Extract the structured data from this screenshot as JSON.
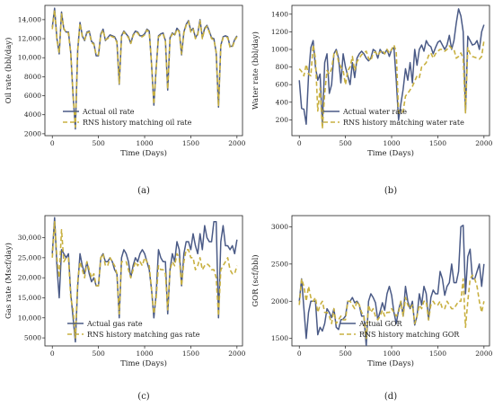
{
  "colors": {
    "actual": "#4a5a86",
    "rns": "#c8b040",
    "axis": "#222222"
  },
  "chart_data": [
    {
      "type": "line",
      "caption": "(a)",
      "xlabel": "Time (Days)",
      "ylabel": "Oil rate (bbl/day)",
      "xlim": [
        -80,
        2060
      ],
      "ylim": [
        1800,
        15500
      ],
      "xticks": [
        0,
        500,
        1000,
        1500,
        2000
      ],
      "yticks": [
        2000,
        4000,
        6000,
        8000,
        10000,
        12000,
        14000
      ],
      "ytick_labels": [
        "2000",
        "4000",
        "6000",
        "8000",
        "10,000",
        "12,000",
        "14,000"
      ],
      "legend_position": "lower-center",
      "x": [
        0,
        25,
        50,
        75,
        100,
        125,
        150,
        175,
        200,
        225,
        250,
        275,
        300,
        325,
        350,
        375,
        400,
        425,
        450,
        475,
        500,
        525,
        550,
        575,
        600,
        625,
        650,
        675,
        700,
        725,
        750,
        775,
        800,
        825,
        850,
        875,
        900,
        925,
        950,
        975,
        1000,
        1025,
        1050,
        1075,
        1100,
        1125,
        1150,
        1175,
        1200,
        1225,
        1250,
        1275,
        1300,
        1325,
        1350,
        1375,
        1400,
        1425,
        1450,
        1475,
        1500,
        1525,
        1550,
        1575,
        1600,
        1625,
        1650,
        1675,
        1700,
        1725,
        1750,
        1775,
        1800,
        1825,
        1850,
        1875,
        1900,
        1925,
        1950,
        1975,
        2000
      ],
      "series": [
        {
          "name": "Actual oil rate",
          "style": "solid",
          "values": [
            13200,
            15200,
            12000,
            10400,
            14800,
            13000,
            12700,
            12700,
            10500,
            6000,
            2500,
            10800,
            13700,
            12300,
            11800,
            12700,
            12800,
            11700,
            11500,
            10200,
            10200,
            12500,
            13000,
            11800,
            12100,
            12400,
            12300,
            12200,
            11700,
            7200,
            12300,
            12800,
            12500,
            12200,
            11500,
            12400,
            12800,
            12700,
            12300,
            12300,
            12500,
            13000,
            12800,
            9300,
            5000,
            8900,
            12300,
            12500,
            12600,
            11800,
            6600,
            12100,
            12600,
            12400,
            13100,
            12800,
            10300,
            12700,
            13500,
            13900,
            12800,
            13100,
            12100,
            12500,
            14000,
            12100,
            13100,
            13400,
            12800,
            12100,
            12000,
            10500,
            4800,
            11300,
            12200,
            12300,
            12200,
            11200,
            11200,
            11900,
            12300
          ]
        },
        {
          "name": "RNS history matching oil rate",
          "style": "dashed",
          "values": [
            13000,
            15000,
            11900,
            10500,
            14600,
            13100,
            12600,
            12600,
            10400,
            6100,
            2700,
            10700,
            13600,
            12200,
            11900,
            12600,
            12700,
            11600,
            11400,
            10300,
            10300,
            12400,
            12900,
            11900,
            12000,
            12300,
            12200,
            12100,
            11600,
            7300,
            12200,
            12700,
            12400,
            12100,
            11500,
            12300,
            12700,
            12600,
            12200,
            12200,
            12400,
            12900,
            12700,
            9400,
            5100,
            8800,
            12200,
            12400,
            12500,
            11700,
            6700,
            12000,
            12500,
            12300,
            13000,
            12700,
            10400,
            12600,
            13400,
            13800,
            12700,
            13000,
            12000,
            12400,
            13900,
            12000,
            13000,
            13300,
            12700,
            12000,
            11900,
            10600,
            4900,
            11200,
            12100,
            12200,
            12100,
            11100,
            11100,
            11800,
            12200
          ]
        }
      ]
    },
    {
      "type": "line",
      "caption": "(b)",
      "xlabel": "Time (Days)",
      "ylabel": "Water rate (bbl/day)",
      "xlim": [
        -80,
        2060
      ],
      "ylim": [
        20,
        1500
      ],
      "xticks": [
        0,
        500,
        1000,
        1500,
        2000
      ],
      "yticks": [
        200,
        400,
        600,
        800,
        1000,
        1200,
        1400
      ],
      "ytick_labels": [
        "200",
        "400",
        "600",
        "800",
        "1000",
        "1200",
        "1400"
      ],
      "legend_position": "lower-right",
      "x": [
        0,
        25,
        50,
        75,
        100,
        125,
        150,
        175,
        200,
        225,
        250,
        275,
        300,
        325,
        350,
        375,
        400,
        425,
        450,
        475,
        500,
        525,
        550,
        575,
        600,
        625,
        650,
        675,
        700,
        725,
        750,
        775,
        800,
        825,
        850,
        875,
        900,
        925,
        950,
        975,
        1000,
        1025,
        1050,
        1075,
        1100,
        1125,
        1150,
        1175,
        1200,
        1225,
        1250,
        1275,
        1300,
        1325,
        1350,
        1375,
        1400,
        1425,
        1450,
        1475,
        1500,
        1525,
        1550,
        1575,
        1600,
        1625,
        1650,
        1675,
        1700,
        1725,
        1750,
        1775,
        1800,
        1825,
        1850,
        1875,
        1900,
        1925,
        1950,
        1975,
        2000
      ],
      "series": [
        {
          "name": "Actual water rate",
          "style": "solid",
          "values": [
            650,
            330,
            320,
            150,
            700,
            1020,
            1100,
            800,
            650,
            720,
            150,
            850,
            950,
            500,
            600,
            950,
            1000,
            900,
            620,
            950,
            800,
            700,
            600,
            850,
            680,
            900,
            950,
            980,
            950,
            900,
            870,
            900,
            1000,
            980,
            900,
            1000,
            960,
            950,
            1000,
            920,
            1000,
            1020,
            650,
            200,
            380,
            550,
            780,
            650,
            850,
            620,
            1000,
            820,
            1000,
            1050,
            980,
            1100,
            1050,
            1030,
            950,
            1020,
            1080,
            1100,
            1050,
            1000,
            1050,
            1160,
            1000,
            1100,
            1300,
            1460,
            1380,
            1200,
            280,
            1150,
            1100,
            1050,
            1060,
            1100,
            1000,
            1200,
            1280
          ]
        },
        {
          "name": "RNS history matching water rate",
          "style": "dashed",
          "values": [
            780,
            750,
            700,
            830,
            720,
            700,
            1050,
            900,
            300,
            560,
            100,
            500,
            760,
            720,
            780,
            950,
            980,
            860,
            800,
            760,
            600,
            760,
            800,
            920,
            760,
            860,
            900,
            940,
            960,
            980,
            900,
            870,
            960,
            970,
            930,
            970,
            990,
            950,
            1000,
            960,
            1000,
            1050,
            970,
            280,
            270,
            300,
            470,
            500,
            540,
            580,
            640,
            700,
            680,
            800,
            820,
            850,
            930,
            960,
            900,
            950,
            980,
            1000,
            1000,
            980,
            1000,
            1040,
            1010,
            1000,
            900,
            920,
            960,
            900,
            280,
            1020,
            950,
            920,
            910,
            900,
            890,
            920,
            1100
          ]
        }
      ]
    },
    {
      "type": "line",
      "caption": "(c)",
      "xlabel": "Time (Days)",
      "ylabel": "Gas rate (Mscf/day)",
      "xlim": [
        -80,
        2060
      ],
      "ylim": [
        3000,
        35500
      ],
      "xticks": [
        0,
        500,
        1000,
        1500,
        2000
      ],
      "yticks": [
        5000,
        10000,
        15000,
        20000,
        25000,
        30000
      ],
      "ytick_labels": [
        "5000",
        "10,000",
        "15,000",
        "20,000",
        "25,000",
        "30,000"
      ],
      "legend_position": "lower-center",
      "x": [
        0,
        25,
        50,
        75,
        100,
        125,
        150,
        175,
        200,
        225,
        250,
        275,
        300,
        325,
        350,
        375,
        400,
        425,
        450,
        475,
        500,
        525,
        550,
        575,
        600,
        625,
        650,
        675,
        700,
        725,
        750,
        775,
        800,
        825,
        850,
        875,
        900,
        925,
        950,
        975,
        1000,
        1025,
        1050,
        1075,
        1100,
        1125,
        1150,
        1175,
        1200,
        1225,
        1250,
        1275,
        1300,
        1325,
        1350,
        1375,
        1400,
        1425,
        1450,
        1475,
        1500,
        1525,
        1550,
        1575,
        1600,
        1625,
        1650,
        1675,
        1700,
        1725,
        1750,
        1775,
        1800,
        1825,
        1850,
        1875,
        1900,
        1925,
        1950,
        1975,
        2000
      ],
      "series": [
        {
          "name": "Actual gas rate",
          "style": "solid",
          "values": [
            26000,
            35000,
            23000,
            15000,
            27000,
            26000,
            25000,
            26000,
            16000,
            10000,
            4000,
            18000,
            26000,
            23000,
            21000,
            24000,
            21000,
            19000,
            20000,
            18000,
            18000,
            25000,
            26000,
            24000,
            24000,
            25000,
            24000,
            22000,
            21000,
            10000,
            25000,
            27000,
            26000,
            24000,
            20000,
            23000,
            25000,
            24000,
            26000,
            27000,
            26000,
            24000,
            22000,
            17000,
            10000,
            16000,
            27000,
            25000,
            24000,
            24000,
            11000,
            22000,
            26000,
            24000,
            29000,
            27000,
            18000,
            26000,
            29000,
            29000,
            27000,
            31000,
            28000,
            26000,
            31000,
            27000,
            33000,
            30000,
            29000,
            29000,
            34000,
            34000,
            10000,
            29000,
            33000,
            28000,
            28000,
            27000,
            28000,
            26000,
            29500
          ]
        },
        {
          "name": "RNS history matching gas rate",
          "style": "dashed",
          "values": [
            25000,
            34000,
            25000,
            20000,
            32000,
            24000,
            25000,
            25000,
            15000,
            12000,
            5000,
            19000,
            24000,
            22000,
            20000,
            24000,
            22000,
            20000,
            21000,
            18000,
            18000,
            25000,
            26000,
            23000,
            23000,
            25000,
            24000,
            23000,
            21000,
            11000,
            24000,
            24000,
            24000,
            22000,
            20000,
            22000,
            24000,
            23000,
            24000,
            23000,
            25000,
            24000,
            23000,
            17000,
            11000,
            15000,
            23000,
            22000,
            22000,
            21000,
            12000,
            22000,
            24000,
            23000,
            26000,
            25000,
            18000,
            24000,
            27000,
            27000,
            25000,
            25000,
            22000,
            23000,
            25000,
            22000,
            23000,
            23500,
            23000,
            22000,
            22000,
            20000,
            10500,
            22000,
            23000,
            24000,
            25000,
            22000,
            21000,
            21000,
            23000
          ]
        }
      ]
    },
    {
      "type": "line",
      "caption": "(d)",
      "xlabel": "Time (Days)",
      "ylabel": "GOR (scf/bbl)",
      "xlim": [
        -80,
        2060
      ],
      "ylim": [
        1400,
        3150
      ],
      "xticks": [
        0,
        500,
        1000,
        1500,
        2000
      ],
      "yticks": [
        1500,
        2000,
        2500,
        3000
      ],
      "ytick_labels": [
        "1500",
        "2000",
        "2500",
        "3000"
      ],
      "legend_position": "lower-center",
      "x": [
        0,
        25,
        50,
        75,
        100,
        125,
        150,
        175,
        200,
        225,
        250,
        275,
        300,
        325,
        350,
        375,
        400,
        425,
        450,
        475,
        500,
        525,
        550,
        575,
        600,
        625,
        650,
        675,
        700,
        725,
        750,
        775,
        800,
        825,
        850,
        875,
        900,
        925,
        950,
        975,
        1000,
        1025,
        1050,
        1075,
        1100,
        1125,
        1150,
        1175,
        1200,
        1225,
        1250,
        1275,
        1300,
        1325,
        1350,
        1375,
        1400,
        1425,
        1450,
        1475,
        1500,
        1525,
        1550,
        1575,
        1600,
        1625,
        1650,
        1675,
        1700,
        1725,
        1750,
        1775,
        1800,
        1825,
        1850,
        1875,
        1900,
        1925,
        1950,
        1975,
        2000
      ],
      "series": [
        {
          "name": "Actual GOR",
          "style": "solid",
          "values": [
            2000,
            2300,
            1900,
            1500,
            1850,
            2000,
            2000,
            2000,
            1550,
            1650,
            1600,
            1700,
            1900,
            1850,
            1780,
            1900,
            1650,
            1620,
            1750,
            1760,
            1800,
            2000,
            2000,
            2050,
            1980,
            2000,
            1950,
            1800,
            1800,
            1400,
            2000,
            2100,
            2050,
            1980,
            1750,
            1860,
            1980,
            1880,
            2100,
            2200,
            2080,
            1850,
            1700,
            1880,
            2000,
            1800,
            2200,
            2000,
            1900,
            2000,
            1680,
            1800,
            2100,
            1950,
            2200,
            2100,
            1750,
            2050,
            2150,
            2100,
            2100,
            2400,
            2300,
            2080,
            2200,
            2250,
            2500,
            2250,
            2250,
            2400,
            3000,
            3020,
            2100,
            2600,
            2700,
            2300,
            2300,
            2400,
            2500,
            2200,
            2500
          ]
        },
        {
          "name": "RNS history matching GOR",
          "style": "dashed",
          "values": [
            1950,
            2300,
            2200,
            2000,
            2200,
            2050,
            2000,
            2050,
            1850,
            1950,
            2000,
            1850,
            1850,
            1800,
            1700,
            1900,
            1700,
            1750,
            1800,
            1750,
            1750,
            2000,
            2000,
            1950,
            1900,
            2000,
            1950,
            1850,
            1800,
            1500,
            1950,
            1850,
            1900,
            1800,
            1750,
            1800,
            1880,
            1800,
            1850,
            1850,
            1900,
            1850,
            1800,
            1850,
            2000,
            1800,
            2050,
            1950,
            1900,
            1950,
            1700,
            1800,
            1950,
            1900,
            2000,
            2000,
            1750,
            1950,
            2000,
            1950,
            1950,
            2000,
            1900,
            1900,
            2000,
            1950,
            1900,
            1900,
            1950,
            2000,
            2000,
            2300,
            1650,
            2000,
            2300,
            2350,
            2300,
            2200,
            2000,
            1850,
            2000
          ]
        }
      ]
    }
  ]
}
